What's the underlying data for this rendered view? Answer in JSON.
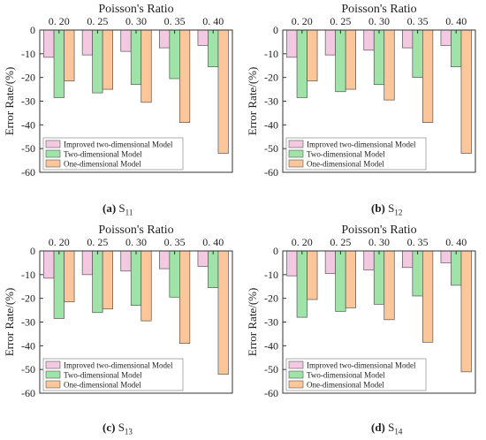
{
  "colors": {
    "improved": "#f3c9e2",
    "two_dim": "#9fe3a8",
    "one_dim": "#fbc79a",
    "axis": "#333333"
  },
  "legend_labels": [
    "Improved two-dimensional Model",
    "Two-dimensional Model",
    "One-dimensional Model"
  ],
  "captions": [
    {
      "label": "(a)",
      "var": "S",
      "sub": "11"
    },
    {
      "label": "(b)",
      "var": "S",
      "sub": "12"
    },
    {
      "label": "(c)",
      "var": "S",
      "sub": "13"
    },
    {
      "label": "(d)",
      "var": "S",
      "sub": "14"
    }
  ],
  "chart_data": [
    {
      "type": "bar",
      "title": "Poisson's Ratio",
      "ylabel": "Error Rate/(%)",
      "categories": [
        "0. 20",
        "0. 25",
        "0. 30",
        "0. 35",
        "0. 40"
      ],
      "ylim": [
        -60,
        0
      ],
      "yticks": [
        "0",
        "-10",
        "-20",
        "-30",
        "-40",
        "-50",
        "-60"
      ],
      "x_axis_position": "top",
      "legend": "bottom-left",
      "series": [
        {
          "name": "Improved two-dimensional Model",
          "values": [
            -11.5,
            -10.5,
            -9,
            -7.5,
            -6.5
          ]
        },
        {
          "name": "Two-dimensional Model",
          "values": [
            -28.5,
            -26.5,
            -23,
            -20.5,
            -15.5
          ]
        },
        {
          "name": "One-dimensional Model",
          "values": [
            -21.5,
            -25,
            -30.5,
            -39,
            -52
          ]
        }
      ]
    },
    {
      "type": "bar",
      "title": "Poisson's Ratio",
      "ylabel": "Error Rate/(%)",
      "categories": [
        "0. 20",
        "0. 25",
        "0. 30",
        "0. 35",
        "0. 40"
      ],
      "ylim": [
        -60,
        0
      ],
      "yticks": [
        "0",
        "-10",
        "-20",
        "-30",
        "-40",
        "-50",
        "-60"
      ],
      "x_axis_position": "top",
      "legend": "bottom-left",
      "series": [
        {
          "name": "Improved two-dimensional Model",
          "values": [
            -11.5,
            -10.5,
            -8.5,
            -7.5,
            -6.5
          ]
        },
        {
          "name": "Two-dimensional Model",
          "values": [
            -28.5,
            -26,
            -23,
            -20,
            -15.5
          ]
        },
        {
          "name": "One-dimensional Model",
          "values": [
            -21.5,
            -25,
            -29.5,
            -39,
            -52
          ]
        }
      ]
    },
    {
      "type": "bar",
      "title": "Poisson's Ratio",
      "ylabel": "Error Rate/(%)",
      "categories": [
        "0. 20",
        "0. 25",
        "0. 30",
        "0. 35",
        "0. 40"
      ],
      "ylim": [
        -60,
        0
      ],
      "yticks": [
        "0",
        "-10",
        "-20",
        "-30",
        "-40",
        "-50",
        "-60"
      ],
      "x_axis_position": "top",
      "legend": "bottom-left",
      "series": [
        {
          "name": "Improved two-dimensional Model",
          "values": [
            -11.5,
            -10,
            -8.5,
            -7.5,
            -6.5
          ]
        },
        {
          "name": "Two-dimensional Model",
          "values": [
            -28.5,
            -26,
            -23,
            -19.5,
            -15.5
          ]
        },
        {
          "name": "One-dimensional Model",
          "values": [
            -21.5,
            -24.5,
            -29.5,
            -39,
            -52
          ]
        }
      ]
    },
    {
      "type": "bar",
      "title": "Poisson's Ratio",
      "ylabel": "Error Rate/(%)",
      "categories": [
        "0. 20",
        "0. 25",
        "0. 30",
        "0. 35",
        "0. 40"
      ],
      "ylim": [
        -60,
        0
      ],
      "yticks": [
        "0",
        "-10",
        "-20",
        "-30",
        "-40",
        "-50",
        "-60"
      ],
      "x_axis_position": "top",
      "legend": "bottom-left",
      "series": [
        {
          "name": "Improved two-dimensional Model",
          "values": [
            -10.5,
            -9.5,
            -8,
            -7,
            -5
          ]
        },
        {
          "name": "Two-dimensional Model",
          "values": [
            -28,
            -25.5,
            -22.5,
            -19,
            -14.5
          ]
        },
        {
          "name": "One-dimensional Model",
          "values": [
            -20.5,
            -24,
            -29,
            -38.5,
            -51
          ]
        }
      ]
    }
  ]
}
